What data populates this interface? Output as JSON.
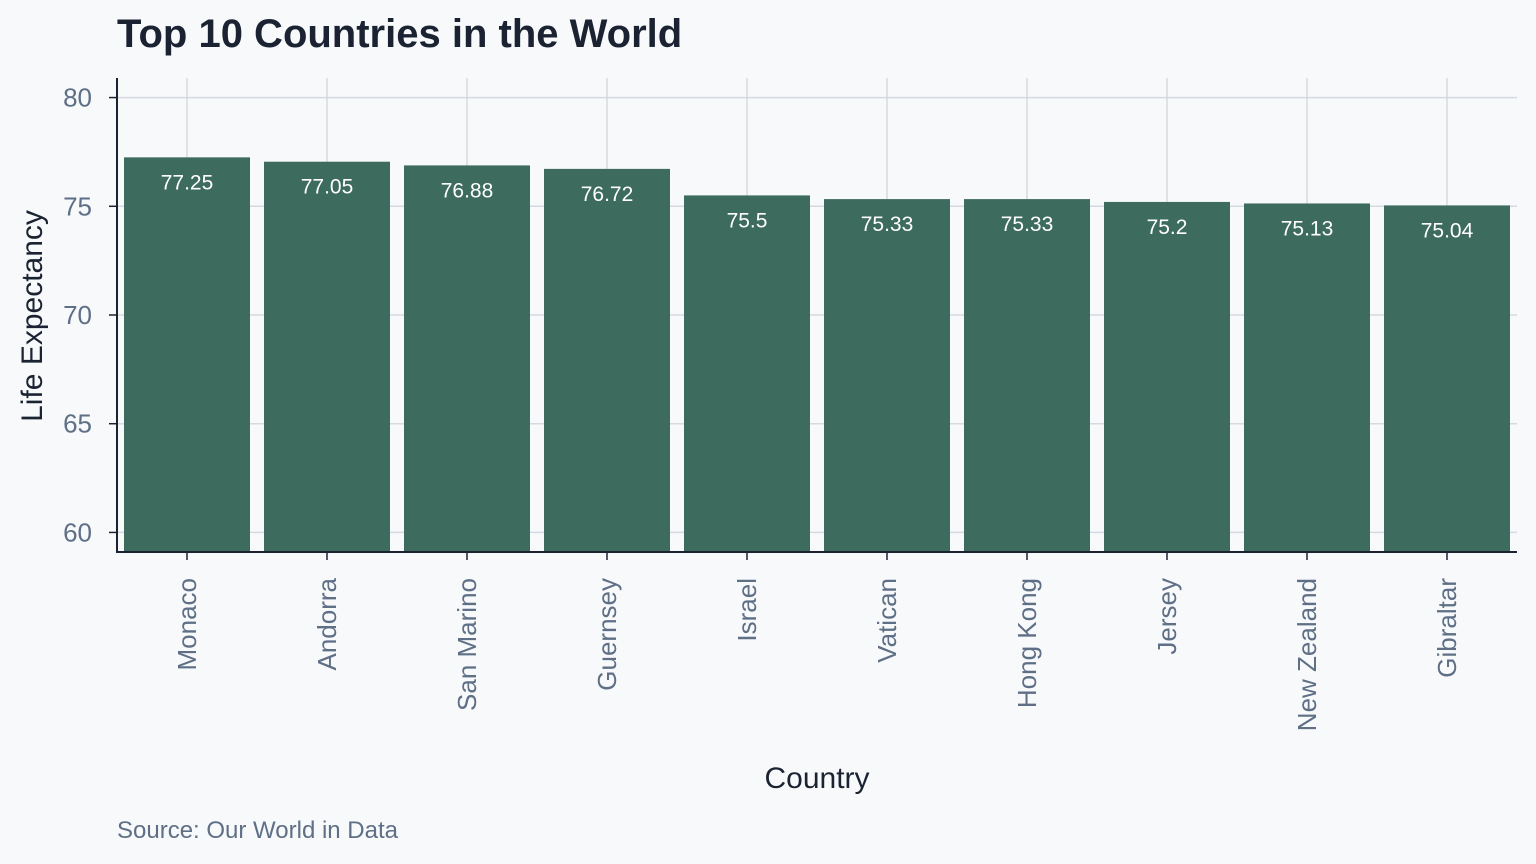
{
  "chart_data": {
    "type": "bar",
    "title": "Top 10 Countries in the World",
    "xlabel": "Country",
    "ylabel": "Life Expectancy",
    "caption": "Source: Our World in Data",
    "categories": [
      "Monaco",
      "Andorra",
      "San Marino",
      "Guernsey",
      "Israel",
      "Vatican",
      "Hong Kong",
      "Jersey",
      "New Zealand",
      "Gibraltar"
    ],
    "values": [
      77.25,
      77.05,
      76.88,
      76.72,
      75.5,
      75.33,
      75.33,
      75.2,
      75.13,
      75.04
    ],
    "data_labels": [
      "77.25",
      "77.05",
      "76.88",
      "76.72",
      "75.5",
      "75.33",
      "75.33",
      "75.2",
      "75.13",
      "75.04"
    ],
    "yticks": [
      60,
      65,
      70,
      75,
      80
    ],
    "ytick_labels": [
      "60",
      "65",
      "70",
      "75",
      "80"
    ],
    "ylim": [
      59.1,
      80.9
    ],
    "grid": true,
    "legend": "none",
    "bar_color": "#3d6b5e",
    "label_color": "#ffffff",
    "axis_color": "#1b2333",
    "grid_color": "#d5d9e0",
    "tick_label_color": "#5e6f86"
  }
}
